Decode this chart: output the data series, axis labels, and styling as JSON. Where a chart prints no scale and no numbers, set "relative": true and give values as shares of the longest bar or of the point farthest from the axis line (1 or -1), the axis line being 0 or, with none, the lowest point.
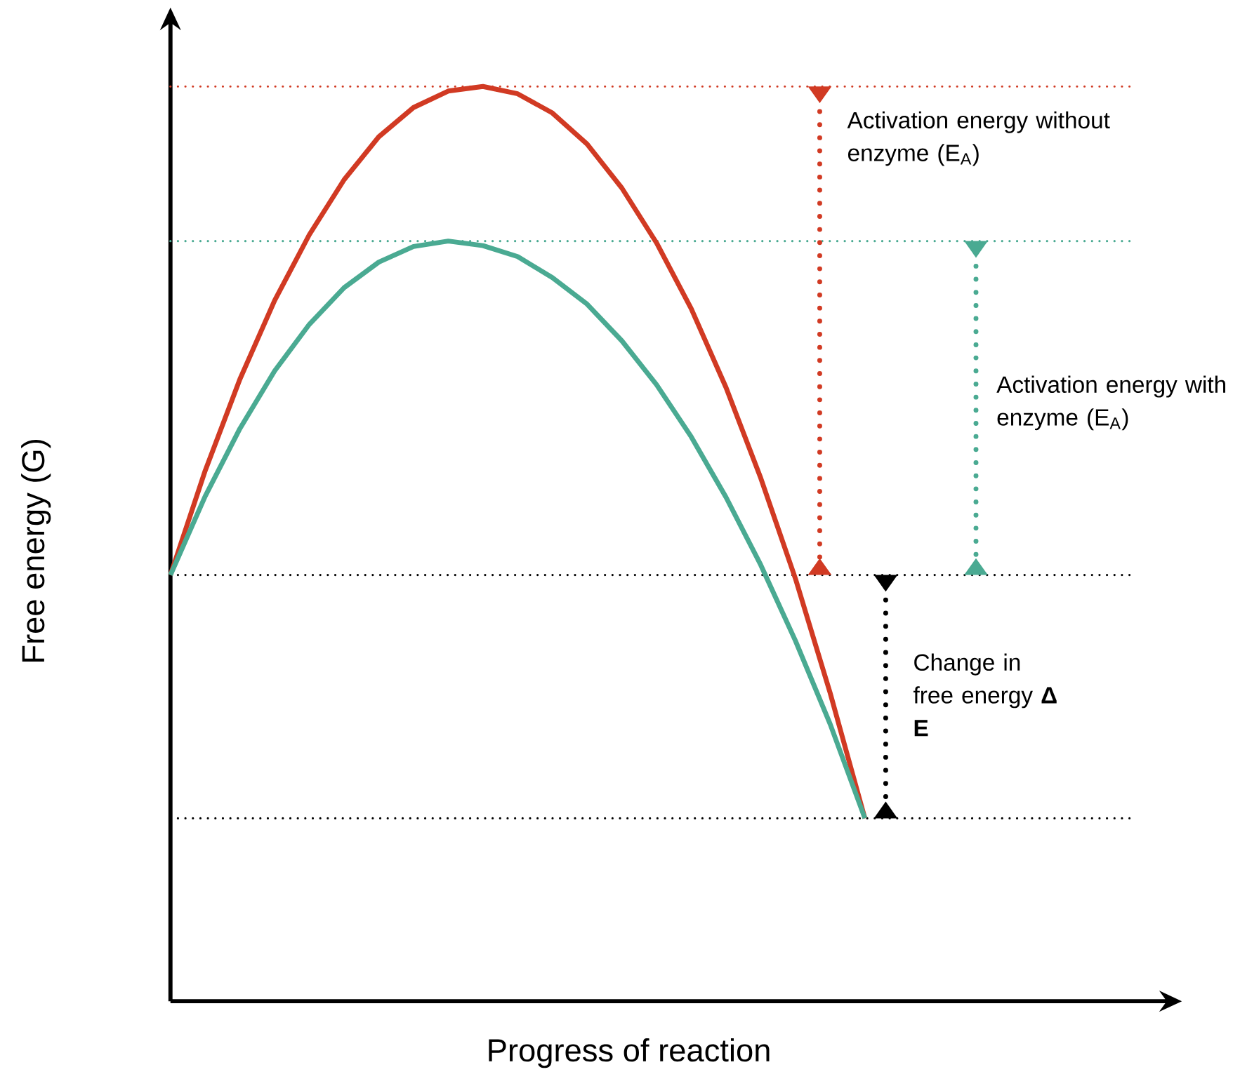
{
  "chart_data": {
    "type": "line",
    "relative": true,
    "xlabel": "Progress of reaction",
    "ylabel": "Free energy (G)",
    "categories": [
      null,
      null,
      null,
      null,
      null,
      null,
      null,
      null,
      null,
      null,
      null,
      null,
      null,
      null,
      null,
      null,
      null,
      null,
      null,
      null,
      null,
      null,
      null,
      null,
      null,
      null,
      null,
      null,
      null
    ],
    "series": [
      {
        "color": "#d13a23",
        "values": [
          0.466,
          0.58,
          0.68,
          0.766,
          0.838,
          0.898,
          0.945,
          0.977,
          0.995,
          1.0,
          0.992,
          0.971,
          0.937,
          0.889,
          0.829,
          0.757,
          0.671,
          0.572,
          0.462,
          0.337,
          0.2,
          null,
          null,
          null,
          null,
          null,
          null,
          null,
          null
        ]
      },
      {
        "color": "#4aaa92",
        "values": [
          0.466,
          0.552,
          0.626,
          0.689,
          0.74,
          0.78,
          0.808,
          0.825,
          0.831,
          0.826,
          0.814,
          0.791,
          0.762,
          0.722,
          0.674,
          0.617,
          0.551,
          0.477,
          0.394,
          0.303,
          0.2,
          null,
          null,
          null,
          null,
          null,
          null,
          null,
          null
        ]
      }
    ],
    "ref_lines": [
      {
        "axis": "y",
        "value": 1.0,
        "color": "#d13a23",
        "line_style": "dotted"
      },
      {
        "axis": "y",
        "value": 0.831,
        "color": "#4aaa92",
        "line_style": "dotted"
      },
      {
        "axis": "y",
        "value": 0.466,
        "color": "#000000",
        "line_style": "dotted"
      },
      {
        "axis": "y",
        "value": 0.2,
        "color": "#000000",
        "line_style": "dotted"
      }
    ],
    "annotations": [
      "Activation energy without enzyme (E$_{A}$)",
      "Activation energy with enzyme (E$_{A}$)",
      "Change in free energy **Δ E**"
    ]
  }
}
